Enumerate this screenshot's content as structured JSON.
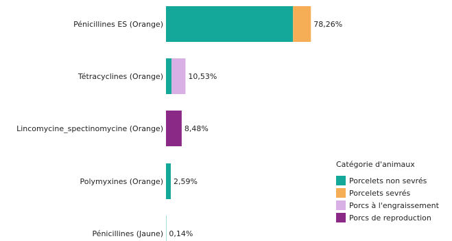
{
  "chart_data": {
    "type": "bar",
    "orientation": "horizontal",
    "stacked": true,
    "grid": false,
    "xlim": [
      0,
      100
    ],
    "legend_position": "bottom-right",
    "categories": [
      "Pénicillines ES (Orange)",
      "Tétracyclines (Orange)",
      "Lincomycine_spectinomycine (Orange)",
      "Polymyxines (Orange)",
      "Pénicillines (Jaune)"
    ],
    "total_labels": [
      "78,26%",
      "10,53%",
      "8,48%",
      "2,59%",
      "0,14%"
    ],
    "series": [
      {
        "name": "Porcelets non sevrés",
        "color": "#14A89A",
        "values": [
          68.6,
          3.0,
          0,
          2.59,
          0.14
        ]
      },
      {
        "name": "Porcelets sevrés",
        "color": "#F6AE56",
        "values": [
          9.66,
          0,
          0,
          0,
          0
        ]
      },
      {
        "name": "Porcs à l'engraissement",
        "color": "#D9B0E6",
        "values": [
          0,
          7.53,
          0,
          0,
          0
        ]
      },
      {
        "name": "Porcs de reproduction",
        "color": "#8B2A86",
        "values": [
          0,
          0,
          8.48,
          0,
          0
        ]
      }
    ],
    "legend_title": "Catégorie d'animaux"
  }
}
